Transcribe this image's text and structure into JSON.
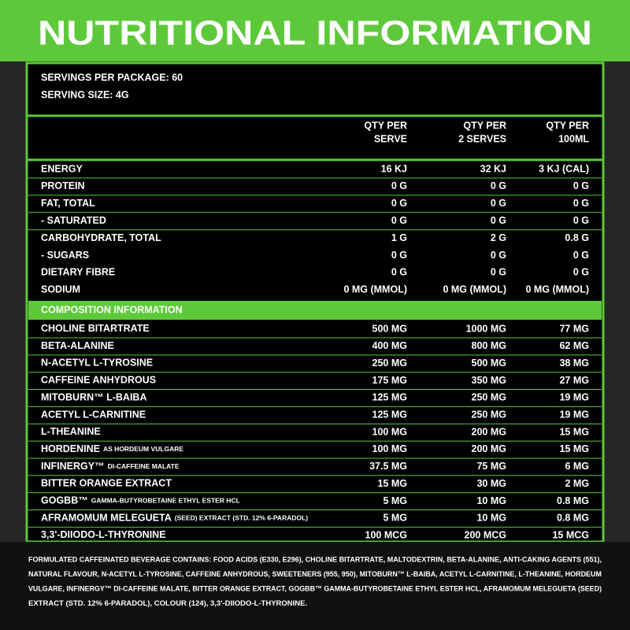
{
  "header": {
    "title": "NUTRITIONAL INFORMATION"
  },
  "servings": [
    "SERVINGS PER PACKAGE: 60",
    "SERVING SIZE: 4G"
  ],
  "table": {
    "columns": [
      [
        "QTY PER",
        "SERVE"
      ],
      [
        "QTY PER",
        "2 SERVES"
      ],
      [
        "QTY PER",
        "100ML"
      ]
    ],
    "rows": [
      [
        "ENERGY",
        "16 KJ",
        "32 KJ",
        "3 KJ (CAL)"
      ],
      [
        "PROTEIN",
        "0 G",
        "0 G",
        "0 G"
      ],
      [
        "FAT, TOTAL",
        "0 G",
        "0 G",
        "0 G"
      ],
      [
        "- SATURATED",
        "0 G",
        "0 G",
        "0 G"
      ],
      [
        "CARBOHYDRATE, TOTAL",
        "1 G",
        "2 G",
        "0.8 G"
      ],
      [
        "- SUGARS",
        "0 G",
        "0 G",
        "0 G"
      ],
      [
        "DIETARY FIBRE",
        "0 G",
        "0 G",
        "0 G"
      ],
      [
        "SODIUM",
        "0 MG (MMOL)",
        "0 MG (MMOL)",
        "0 MG (MMOL)"
      ]
    ]
  },
  "composition": {
    "title": "COMPOSITION INFORMATION",
    "rows": [
      {
        "name": "CHOLINE BITARTRATE",
        "values": [
          "500 MG",
          "1000 MG",
          "77 MG"
        ]
      },
      {
        "name": "BETA-ALANINE",
        "values": [
          "400 MG",
          "800 MG",
          "62 MG"
        ]
      },
      {
        "name": "N-ACETYL L-TYROSINE",
        "values": [
          "250 MG",
          "500 MG",
          "38 MG"
        ]
      },
      {
        "name": "CAFFEINE ANHYDROUS",
        "values": [
          "175 MG",
          "350 MG",
          "27 MG"
        ]
      },
      {
        "name": "MITOBURN™ L-BAIBA",
        "values": [
          "125 MG",
          "250 MG",
          "19 MG"
        ]
      },
      {
        "name": "ACETYL L-CARNITINE",
        "values": [
          "125 MG",
          "250 MG",
          "19 MG"
        ]
      },
      {
        "name": "L-THEANINE",
        "values": [
          "100 MG",
          "200 MG",
          "15 MG"
        ]
      },
      {
        "name": "HORDENINE",
        "note": "AS HORDEUM VULGARE",
        "values": [
          "100 MG",
          "200 MG",
          "15 MG"
        ]
      },
      {
        "name": "INFINERGY™",
        "note": "DI-CAFFEINE MALATE",
        "values": [
          "37.5 MG",
          "75 MG",
          "6 MG"
        ]
      },
      {
        "name": "BITTER ORANGE EXTRACT",
        "values": [
          "15 MG",
          "30 MG",
          "2 MG"
        ]
      },
      {
        "name": "GOGBB™",
        "note": "GAMMA-BUTYROBETAINE ETHYL ESTER HCL",
        "values": [
          "5 MG",
          "10 MG",
          "0.8 MG"
        ]
      },
      {
        "name": "AFRAMOMUM MELEGUETA",
        "note": "(SEED) EXTRACT (STD. 12% 6-PARADOL)",
        "values": [
          "5 MG",
          "10 MG",
          "0.8 MG"
        ]
      },
      {
        "name": "3,3'-DIIODO-L-THYRONINE",
        "values": [
          "100 MCG",
          "200 MCG",
          "15 MCG"
        ]
      }
    ]
  },
  "footer": [
    "FORMULATED CAFFEINATED BEVERAGE CONTAINS: FOOD ACIDS (E330, E296), CHOLINE BITARTRATE, MALTODEXTRIN, BETA-ALANINE, ANTI-CAKING AGENTS (551),",
    "NATURAL FLAVOUR, N-ACETYL L-TYROSINE, CAFFEINE ANHYDROUS, SWEETENERS (955, 950), MITOBURN™ L-BAIBA, ACETYL L-CARNITINE, L-THEANINE, HORDEUM",
    "VULGARE, INFINERGY™ DI-CAFFEINE MALATE, BITTER ORANGE EXTRACT, GOGBB™ GAMMA-BUTYROBETAINE ETHYL ESTER HCL,  AFRAMOMUM MELEGUETA (SEED)",
    "EXTRACT (STD. 12% 6-PARADOL), COLOUR (124), 3,3'-DIIODO-L-THYRONINE."
  ]
}
